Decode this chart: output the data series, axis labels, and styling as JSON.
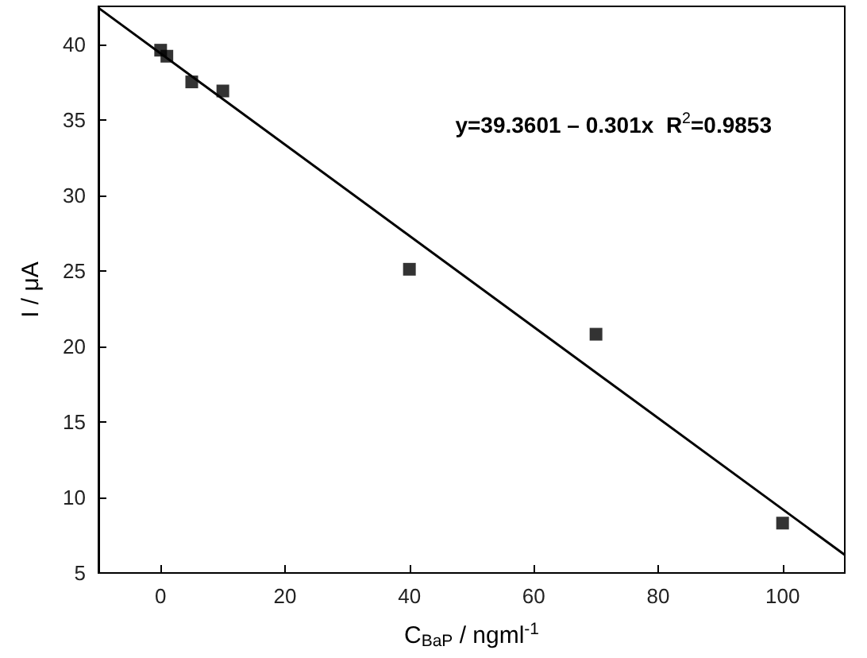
{
  "chart_data": {
    "type": "scatter",
    "xlabel": "C$_{BaP}$ / ngml$^{-1}$",
    "ylabel": "I / μA",
    "annotations": [
      "y=39.3601 – 0.301x  R$^{2}$=0.9853"
    ],
    "series": [
      {
        "type": "scatter",
        "color": "#000000",
        "marker": "square",
        "x": [
          0,
          1,
          5,
          10,
          40,
          70,
          100
        ],
        "values": [
          39.6,
          39.2,
          37.5,
          36.9,
          25.1,
          20.8,
          8.3
        ]
      },
      {
        "type": "line",
        "color": "#000000",
        "marker": "none",
        "x": [
          -10,
          110
        ],
        "values": [
          42.4,
          6.2
        ]
      }
    ],
    "xlim": [
      -10,
      110
    ],
    "xticks": [
      0,
      20,
      40,
      60,
      80,
      100
    ],
    "ylim": [
      5,
      42.5
    ],
    "yticks": [
      5,
      10,
      15,
      20,
      25,
      30,
      35,
      40
    ]
  }
}
